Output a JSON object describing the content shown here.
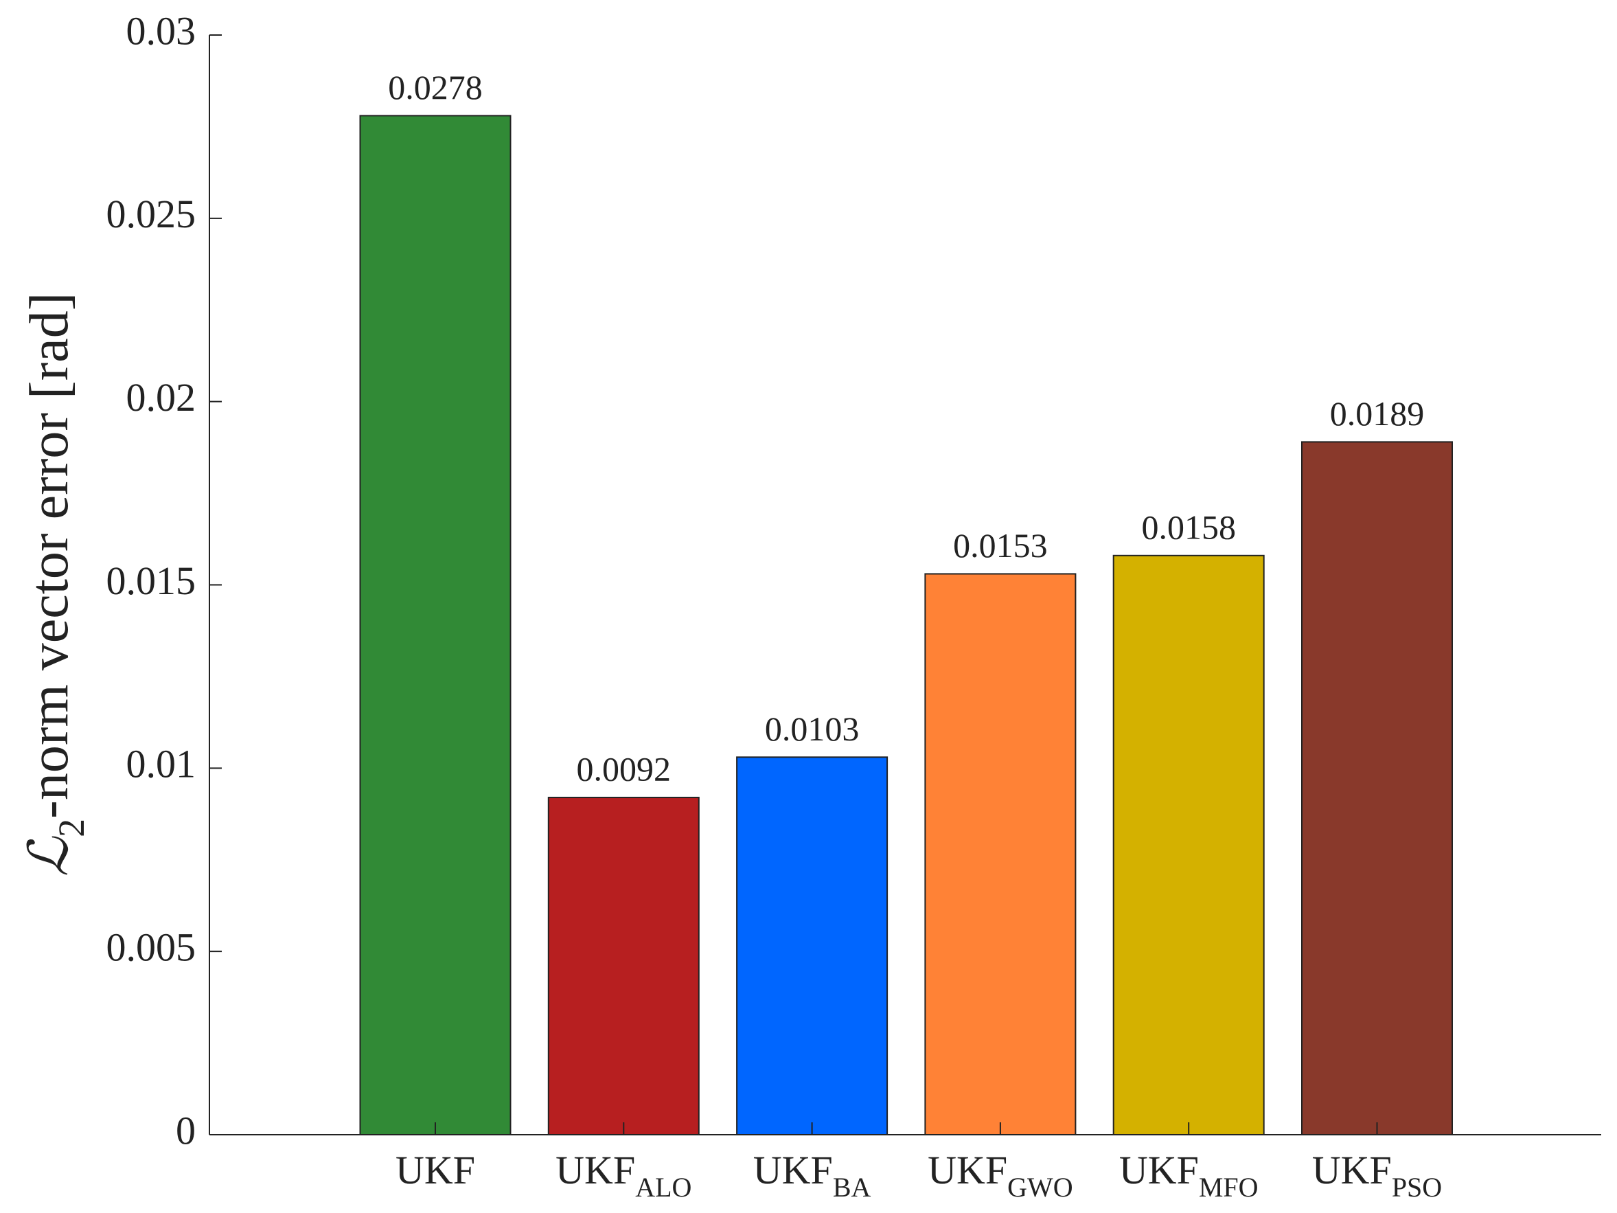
{
  "chart_data": {
    "type": "bar",
    "ylabel": {
      "symbol": "ℒ",
      "subscript": "2",
      "text": "-norm vector error [rad]"
    },
    "categories": [
      {
        "text": "UKF"
      },
      {
        "text": "UKF",
        "subscript": "ALO"
      },
      {
        "text": "UKF",
        "subscript": "BA"
      },
      {
        "text": "UKF",
        "subscript": "GWO"
      },
      {
        "text": "UKF",
        "subscript": "MFO"
      },
      {
        "text": "UKF",
        "subscript": "PSO"
      }
    ],
    "values": [
      0.0278,
      0.0092,
      0.0103,
      0.0153,
      0.0158,
      0.0189
    ],
    "colors": [
      "#318a36",
      "#b71f20",
      "#0066ff",
      "#ff8236",
      "#d4b100",
      "#89392b"
    ],
    "ylim": [
      0,
      0.03
    ],
    "yticks": [
      0,
      0.005,
      0.01,
      0.015,
      0.02,
      0.025,
      0.03
    ],
    "grid": false
  }
}
